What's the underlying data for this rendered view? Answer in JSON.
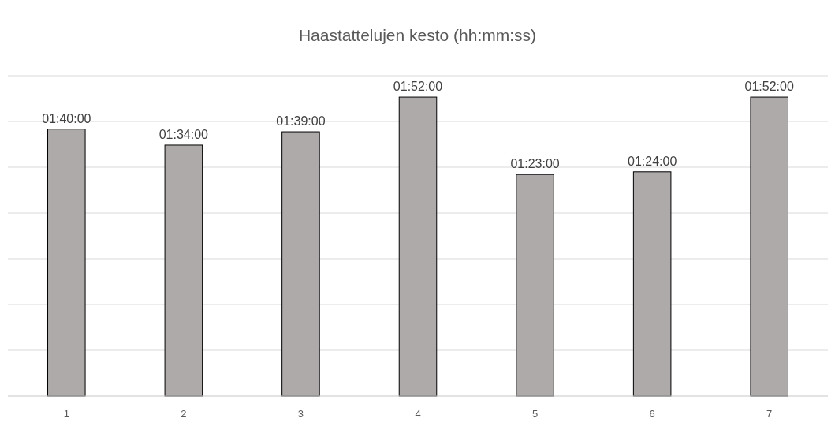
{
  "chart_data": {
    "type": "bar",
    "title": "Haastattelujen kesto (hh:mm:ss)",
    "categories": [
      "1",
      "2",
      "3",
      "4",
      "5",
      "6",
      "7"
    ],
    "values": [
      100,
      94,
      99,
      112,
      83,
      84,
      112
    ],
    "value_labels": [
      "01:40:00",
      "01:34:00",
      "01:39:00",
      "01:52:00",
      "01:23:00",
      "01:24:00",
      "01:52:00"
    ],
    "color": "#aeaaaa",
    "ylim": [
      0,
      120
    ],
    "yticks": [
      {
        "value": 0,
        "label": null
      },
      {
        "value": 17.142857,
        "label": null
      },
      {
        "value": 34.285714,
        "label": null
      },
      {
        "value": 51.428571,
        "label": null
      },
      {
        "value": 68.571429,
        "label": null
      },
      {
        "value": 85.714286,
        "label": null
      },
      {
        "value": 102.857143,
        "label": null
      },
      {
        "value": 120,
        "label": null
      }
    ],
    "tick_labels": "x",
    "grid": "y"
  }
}
